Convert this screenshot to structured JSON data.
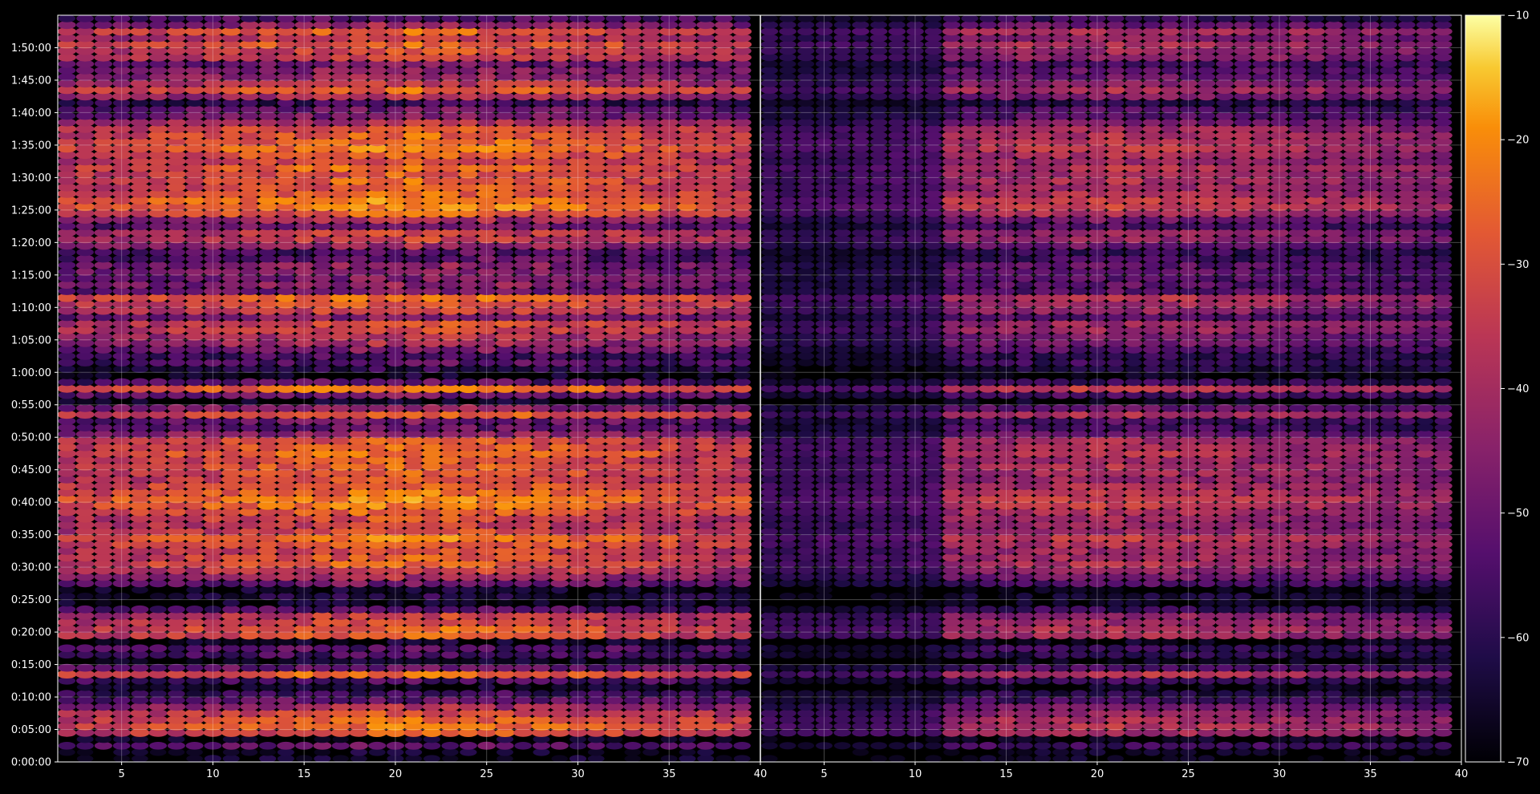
{
  "chart_data": {
    "type": "heatmap",
    "title": "",
    "xlabel": "",
    "ylabel": "",
    "panels": [
      {
        "name": "",
        "xlim": [
          1.5,
          40
        ],
        "xticks": [
          5,
          10,
          15,
          20,
          25,
          30,
          35,
          40
        ],
        "columns": [
          2,
          39
        ],
        "gain": 1.0
      },
      {
        "name": "",
        "xlim": [
          1.5,
          40
        ],
        "xticks": [
          5,
          10,
          15,
          20,
          25,
          30,
          35,
          40
        ],
        "columns": [
          2,
          39
        ],
        "gain": 0.72
      }
    ],
    "y_ticks": [
      "0:00:00",
      "0:05:00",
      "0:10:00",
      "0:15:00",
      "0:20:00",
      "0:25:00",
      "0:30:00",
      "0:35:00",
      "0:40:00",
      "0:45:00",
      "0:50:00",
      "0:55:00",
      "1:00:00",
      "1:05:00",
      "1:10:00",
      "1:15:00",
      "1:20:00",
      "1:25:00",
      "1:30:00",
      "1:35:00",
      "1:40:00",
      "1:45:00",
      "1:50:00"
    ],
    "ylim_minutes": [
      0,
      115
    ],
    "bin_minutes": 1,
    "colorbar": {
      "colormap": "inferno",
      "min": -70,
      "max": -10,
      "ticks": [
        "-10",
        "-20",
        "-30",
        "-40",
        "-50",
        "-60",
        "-70"
      ]
    },
    "grid": true,
    "row_profile_minutes": [
      [
        2,
        -52
      ],
      [
        4,
        -32
      ],
      [
        5,
        -28
      ],
      [
        6,
        -30
      ],
      [
        7,
        -34
      ],
      [
        8,
        -42
      ],
      [
        9,
        -52
      ],
      [
        10,
        -58
      ],
      [
        12,
        -55
      ],
      [
        13,
        -28
      ],
      [
        14,
        -50
      ],
      [
        16,
        -56
      ],
      [
        17,
        -54
      ],
      [
        19,
        -32
      ],
      [
        20,
        -30
      ],
      [
        21,
        -34
      ],
      [
        22,
        -36
      ],
      [
        23,
        -54
      ],
      [
        25,
        -62
      ],
      [
        27,
        -50
      ],
      [
        28,
        -42
      ],
      [
        29,
        -36
      ],
      [
        30,
        -30
      ],
      [
        31,
        -32
      ],
      [
        32,
        -34
      ],
      [
        33,
        -30
      ],
      [
        34,
        -26
      ],
      [
        35,
        -34
      ],
      [
        36,
        -36
      ],
      [
        37,
        -34
      ],
      [
        38,
        -30
      ],
      [
        39,
        -26
      ],
      [
        40,
        -24
      ],
      [
        41,
        -28
      ],
      [
        42,
        -30
      ],
      [
        43,
        -34
      ],
      [
        44,
        -32
      ],
      [
        45,
        -30
      ],
      [
        46,
        -32
      ],
      [
        47,
        -28
      ],
      [
        48,
        -30
      ],
      [
        49,
        -32
      ],
      [
        50,
        -44
      ],
      [
        51,
        -52
      ],
      [
        52,
        -50
      ],
      [
        53,
        -30
      ],
      [
        54,
        -46
      ],
      [
        56,
        -50
      ],
      [
        57,
        -26
      ],
      [
        58,
        -54
      ],
      [
        60,
        -60
      ],
      [
        61,
        -54
      ],
      [
        62,
        -56
      ],
      [
        63,
        -48
      ],
      [
        64,
        -42
      ],
      [
        65,
        -40
      ],
      [
        66,
        -34
      ],
      [
        67,
        -34
      ],
      [
        68,
        -48
      ],
      [
        69,
        -36
      ],
      [
        70,
        -32
      ],
      [
        71,
        -28
      ],
      [
        72,
        -48
      ],
      [
        73,
        -46
      ],
      [
        74,
        -48
      ],
      [
        75,
        -46
      ],
      [
        76,
        -46
      ],
      [
        77,
        -52
      ],
      [
        78,
        -54
      ],
      [
        79,
        -44
      ],
      [
        80,
        -36
      ],
      [
        81,
        -36
      ],
      [
        82,
        -50
      ],
      [
        83,
        -42
      ],
      [
        84,
        -30
      ],
      [
        85,
        -24
      ],
      [
        86,
        -24
      ],
      [
        87,
        -30
      ],
      [
        88,
        -32
      ],
      [
        89,
        -30
      ],
      [
        90,
        -32
      ],
      [
        91,
        -28
      ],
      [
        92,
        -34
      ],
      [
        93,
        -30
      ],
      [
        94,
        -26
      ],
      [
        95,
        -28
      ],
      [
        96,
        -30
      ],
      [
        97,
        -32
      ],
      [
        98,
        -40
      ],
      [
        99,
        -48
      ],
      [
        100,
        -50
      ],
      [
        101,
        -58
      ],
      [
        102,
        -40
      ],
      [
        103,
        -30
      ],
      [
        104,
        -38
      ],
      [
        105,
        -44
      ],
      [
        106,
        -46
      ],
      [
        107,
        -50
      ],
      [
        108,
        -36
      ],
      [
        109,
        -34
      ],
      [
        110,
        -30
      ],
      [
        111,
        -38
      ],
      [
        112,
        -30
      ],
      [
        113,
        -44
      ],
      [
        114,
        -54
      ]
    ]
  }
}
